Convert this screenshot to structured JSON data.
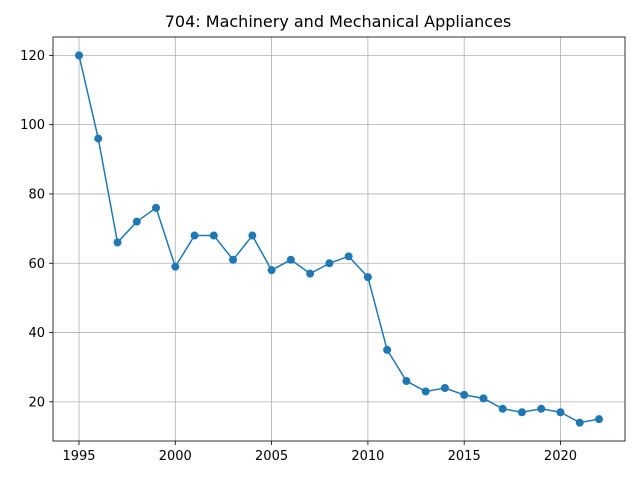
{
  "chart_data": {
    "type": "line",
    "title": "704: Machinery and Mechanical Appliances",
    "xlabel": "",
    "ylabel": "",
    "xlim": [
      1993.65,
      2023.35
    ],
    "ylim": [
      8.7,
      125.3
    ],
    "grid": true,
    "xticks": [
      1995,
      2000,
      2005,
      2010,
      2015,
      2020
    ],
    "yticks": [
      20,
      40,
      60,
      80,
      100,
      120
    ],
    "series": [
      {
        "color": "#1f77b4",
        "marker": "circle",
        "x": [
          1995,
          1996,
          1997,
          1998,
          1999,
          2000,
          2001,
          2002,
          2003,
          2004,
          2005,
          2006,
          2007,
          2008,
          2009,
          2010,
          2011,
          2012,
          2013,
          2014,
          2015,
          2016,
          2017,
          2018,
          2019,
          2020,
          2021,
          2022
        ],
        "y": [
          120,
          96,
          66,
          72,
          76,
          59,
          68,
          68,
          61,
          68,
          58,
          61,
          57,
          60,
          62,
          56,
          35,
          26,
          23,
          24,
          22,
          21,
          18,
          17,
          18,
          17,
          14,
          15
        ]
      }
    ]
  }
}
